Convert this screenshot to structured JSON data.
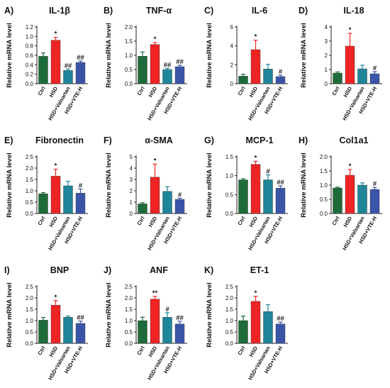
{
  "colors": {
    "Ctrl": "#1e6b3a",
    "HSD": "#ee2424",
    "HSD+Valsartan": "#1f8599",
    "HSD+VTE-H": "#3a55a8",
    "axis": "#222222",
    "text": "#111111"
  },
  "chart_data": [
    {
      "type": "bar",
      "letter": "A)",
      "title": "IL-1β",
      "ylabel": "Relative mRNA level",
      "categories": [
        "Ctrl",
        "HSD",
        "HSD+Valsartan",
        "HSD+VTE-H"
      ],
      "values": [
        0.58,
        0.92,
        0.28,
        0.45
      ],
      "errors": [
        0.07,
        0.06,
        0.03,
        0.03
      ],
      "annotations": [
        "",
        "*",
        "##",
        "##"
      ],
      "ylim": [
        0,
        1.2
      ],
      "yticks": [
        0.0,
        0.2,
        0.4,
        0.6,
        0.8,
        1.0,
        1.2
      ],
      "ytick_labels": [
        "0.0",
        "0.2",
        "0.4",
        "0.6",
        "0.8",
        "1.0",
        "1.2"
      ]
    },
    {
      "type": "bar",
      "letter": "B)",
      "title": "TNF-α",
      "ylabel": "Relative mRNA level",
      "categories": [
        "Ctrl",
        "HSD",
        "HSD+Valsartan",
        "HSD+VTE-H"
      ],
      "values": [
        0.97,
        1.38,
        0.5,
        0.6
      ],
      "errors": [
        0.15,
        0.07,
        0.04,
        0.05
      ],
      "annotations": [
        "",
        "*",
        "##",
        "##"
      ],
      "ylim": [
        0,
        2.0
      ],
      "yticks": [
        0.0,
        0.5,
        1.0,
        1.5,
        2.0
      ],
      "ytick_labels": [
        "0.0",
        "0.5",
        "1.0",
        "1.5",
        "2.0"
      ]
    },
    {
      "type": "bar",
      "letter": "C)",
      "title": "IL-6",
      "ylabel": "Relative mRNA level",
      "categories": [
        "Ctrl",
        "HSD",
        "HSD+Valsartan",
        "HSD+VTE-H"
      ],
      "values": [
        0.8,
        3.6,
        1.55,
        0.75
      ],
      "errors": [
        0.2,
        1.0,
        0.5,
        0.15
      ],
      "annotations": [
        "",
        "*",
        "",
        "#"
      ],
      "ylim": [
        0,
        6
      ],
      "yticks": [
        0,
        2,
        4,
        6
      ],
      "ytick_labels": [
        "0",
        "2",
        "4",
        "6"
      ]
    },
    {
      "type": "bar",
      "letter": "D)",
      "title": "IL-18",
      "ylabel": "Relative mRNA level",
      "categories": [
        "Ctrl",
        "HSD",
        "HSD+Valsartan",
        "HSD+VTE-H"
      ],
      "values": [
        0.75,
        2.65,
        1.05,
        0.7
      ],
      "errors": [
        0.08,
        0.9,
        0.25,
        0.15
      ],
      "annotations": [
        "",
        "*",
        "",
        "#"
      ],
      "ylim": [
        0,
        4
      ],
      "yticks": [
        0,
        1,
        2,
        3,
        4
      ],
      "ytick_labels": [
        "0",
        "1",
        "2",
        "3",
        "4"
      ]
    },
    {
      "type": "bar",
      "letter": "E)",
      "title": "Fibronectin",
      "ylabel": "Relative mRNA level",
      "categories": [
        "Ctrl",
        "HSD",
        "HSD+Valsartan",
        "HSD+VTE-H"
      ],
      "values": [
        0.87,
        1.65,
        1.22,
        0.9
      ],
      "errors": [
        0.05,
        0.3,
        0.2,
        0.18
      ],
      "annotations": [
        "",
        "*",
        "",
        "#"
      ],
      "ylim": [
        0,
        2.5
      ],
      "yticks": [
        0.0,
        0.5,
        1.0,
        1.5,
        2.0,
        2.5
      ],
      "ytick_labels": [
        "0.0",
        "0.5",
        "1.0",
        "1.5",
        "2.0",
        "2.5"
      ]
    },
    {
      "type": "bar",
      "letter": "F)",
      "title": "α-SMA",
      "ylabel": "Relative mRNA level",
      "categories": [
        "Ctrl",
        "HSD",
        "HSD+Valsartan",
        "HSD+VTE-H"
      ],
      "values": [
        0.85,
        3.2,
        1.95,
        1.25
      ],
      "errors": [
        0.1,
        1.15,
        0.4,
        0.1
      ],
      "annotations": [
        "",
        "*",
        "",
        "#"
      ],
      "ylim": [
        0,
        5
      ],
      "yticks": [
        0,
        1,
        2,
        3,
        4,
        5
      ],
      "ytick_labels": [
        "0",
        "1",
        "2",
        "3",
        "4",
        "5"
      ]
    },
    {
      "type": "bar",
      "letter": "G)",
      "title": "MCP-1",
      "ylabel": "Relative mRNA level",
      "categories": [
        "Ctrl",
        "HSD",
        "HSD+Valsartan",
        "HSD+VTE-H"
      ],
      "values": [
        0.89,
        1.3,
        0.89,
        0.67
      ],
      "errors": [
        0.03,
        0.08,
        0.13,
        0.06
      ],
      "annotations": [
        "",
        "*",
        "#",
        "##"
      ],
      "ylim": [
        0,
        1.5
      ],
      "yticks": [
        0.0,
        0.5,
        1.0,
        1.5
      ],
      "ytick_labels": [
        "0.0",
        "0.5",
        "1.0",
        "1.5"
      ]
    },
    {
      "type": "bar",
      "letter": "H)",
      "title": "Col1a1",
      "ylabel": "Relative mRNA level",
      "categories": [
        "Ctrl",
        "HSD",
        "HSD+Valsartan",
        "HSD+VTE-H"
      ],
      "values": [
        0.9,
        1.35,
        1.0,
        0.85
      ],
      "errors": [
        0.03,
        0.2,
        0.08,
        0.07
      ],
      "annotations": [
        "",
        "*",
        "",
        "#"
      ],
      "ylim": [
        0,
        2.0
      ],
      "yticks": [
        0.0,
        0.5,
        1.0,
        1.5,
        2.0
      ],
      "ytick_labels": [
        "0.0",
        "0.5",
        "1.0",
        "1.5",
        "2.0"
      ]
    },
    {
      "type": "bar",
      "letter": "I)",
      "title": "BNP",
      "ylabel": "Relative mRNA level",
      "categories": [
        "Ctrl",
        "HSD",
        "HSD+Valsartan",
        "HSD+VTE-H"
      ],
      "values": [
        1.02,
        1.68,
        1.15,
        0.88
      ],
      "errors": [
        0.12,
        0.2,
        0.05,
        0.1
      ],
      "annotations": [
        "",
        "*",
        "",
        "##"
      ],
      "ylim": [
        0,
        2.5
      ],
      "yticks": [
        0.0,
        0.5,
        1.0,
        1.5,
        2.0,
        2.5
      ],
      "ytick_labels": [
        "0.0",
        "0.5",
        "1.0",
        "1.5",
        "2.0",
        "2.5"
      ]
    },
    {
      "type": "bar",
      "letter": "J)",
      "title": "ANF",
      "ylabel": "Relative mRNA level",
      "categories": [
        "Ctrl",
        "HSD",
        "HSD+Valsartan",
        "HSD+VTE-H"
      ],
      "values": [
        1.0,
        1.95,
        1.15,
        0.85
      ],
      "errors": [
        0.15,
        0.12,
        0.2,
        0.12
      ],
      "annotations": [
        "",
        "**",
        "#",
        "##"
      ],
      "ylim": [
        0,
        2.5
      ],
      "yticks": [
        0.0,
        0.5,
        1.0,
        1.5,
        2.0,
        2.5
      ],
      "ytick_labels": [
        "0.0",
        "0.5",
        "1.0",
        "1.5",
        "2.0",
        "2.5"
      ]
    },
    {
      "type": "bar",
      "letter": "K)",
      "title": "ET-1",
      "ylabel": "Relative mRNA level",
      "categories": [
        "Ctrl",
        "HSD",
        "HSD+Valsartan",
        "HSD+VTE-H"
      ],
      "values": [
        1.0,
        1.85,
        1.4,
        0.85
      ],
      "errors": [
        0.2,
        0.22,
        0.3,
        0.08
      ],
      "annotations": [
        "",
        "*",
        "",
        "##"
      ],
      "ylim": [
        0,
        2.5
      ],
      "yticks": [
        0.0,
        0.5,
        1.0,
        1.5,
        2.0,
        2.5
      ],
      "ytick_labels": [
        "0.0",
        "0.5",
        "1.0",
        "1.5",
        "2.0",
        "2.5"
      ]
    }
  ]
}
